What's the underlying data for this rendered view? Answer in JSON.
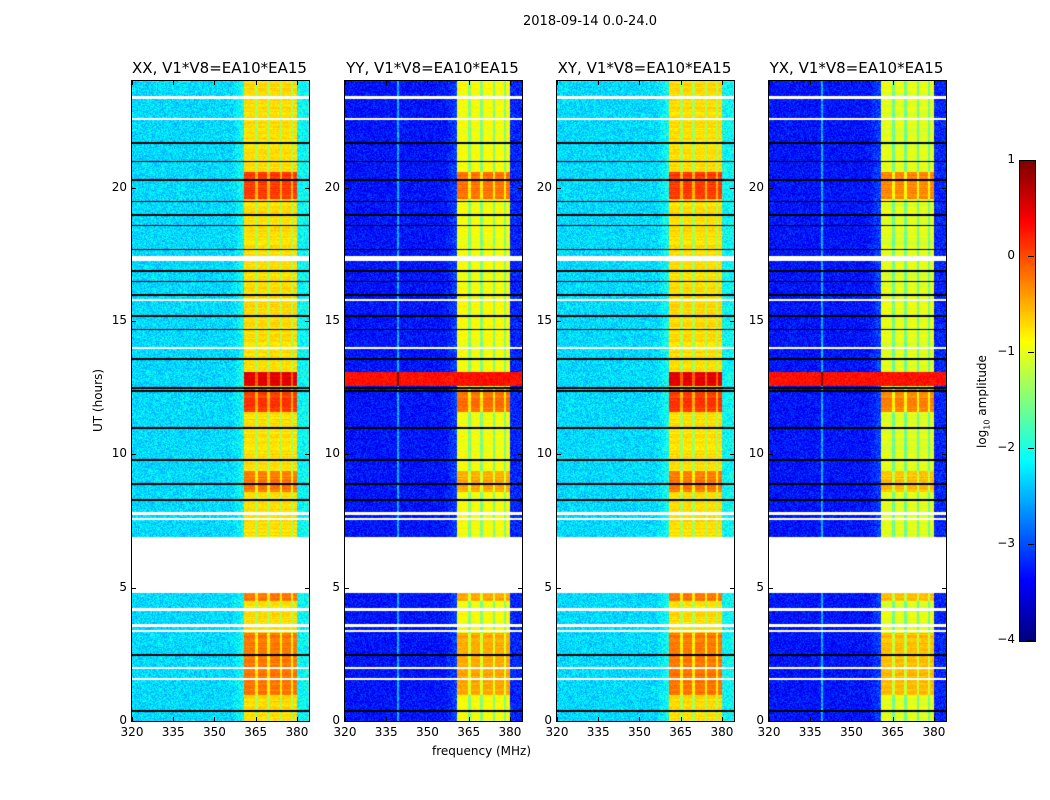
{
  "title": "2018-09-14 0.0-24.0",
  "chart_data": {
    "type": "heatmap",
    "title": "2018-09-14 0.0-24.0",
    "xlabel": "frequency (MHz)",
    "ylabel": "UT (hours)",
    "xlim": [
      320,
      384.4
    ],
    "ylim": [
      0,
      24
    ],
    "xticks": [
      "320",
      "335",
      "350",
      "365",
      "380"
    ],
    "xtick_values": [
      320,
      335,
      350,
      365,
      380
    ],
    "yticks": [
      "0",
      "5",
      "10",
      "15",
      "20"
    ],
    "ytick_values": [
      0,
      5,
      10,
      15,
      20
    ],
    "panels": [
      {
        "title": "XX, V1*V8=EA10*EA15",
        "background_log": -2.3,
        "rfi_log": -0.8
      },
      {
        "title": "YY, V1*V8=EA10*EA15",
        "background_log": -3.3,
        "rfi_log": -1.0
      },
      {
        "title": "XY, V1*V8=EA10*EA15",
        "background_log": -2.3,
        "rfi_log": -0.8
      },
      {
        "title": "YX, V1*V8=EA10*EA15",
        "background_log": -3.3,
        "rfi_log": -1.1
      }
    ],
    "rfi_band_mhz": [
      360.7,
      380
    ],
    "rfi_subchannel_edges_mhz": [
      365,
      369.5,
      374,
      378
    ],
    "no_data_gap_hours": [
      4.8,
      6.9
    ],
    "flagged_white_rows_hours": [
      23.4,
      22.6,
      17.4,
      17.3,
      15.8,
      14.0,
      7.8,
      7.6,
      4.2,
      3.6,
      3.4,
      2.0,
      1.6
    ],
    "flagged_black_rows_hours": [
      21.7,
      21.0,
      20.3,
      19.5,
      19.0,
      18.6,
      17.7,
      16.9,
      16.5,
      16.0,
      15.2,
      14.7,
      13.6,
      12.5,
      12.4,
      11.0,
      9.8,
      8.9,
      8.3,
      2.5,
      0.4
    ],
    "strong_event_hours": [
      12.6,
      13.1
    ],
    "colorbar": {
      "label": "log10 amplitude",
      "label_main": "log",
      "label_sub": "10",
      "label_rest": " amplitude",
      "colormap": "jet",
      "range": [
        -4,
        1
      ],
      "ticks": [
        "1",
        "0",
        "−1",
        "−2",
        "−3",
        "−4"
      ],
      "tick_values": [
        1,
        0,
        -1,
        -2,
        -3,
        -4
      ]
    }
  }
}
